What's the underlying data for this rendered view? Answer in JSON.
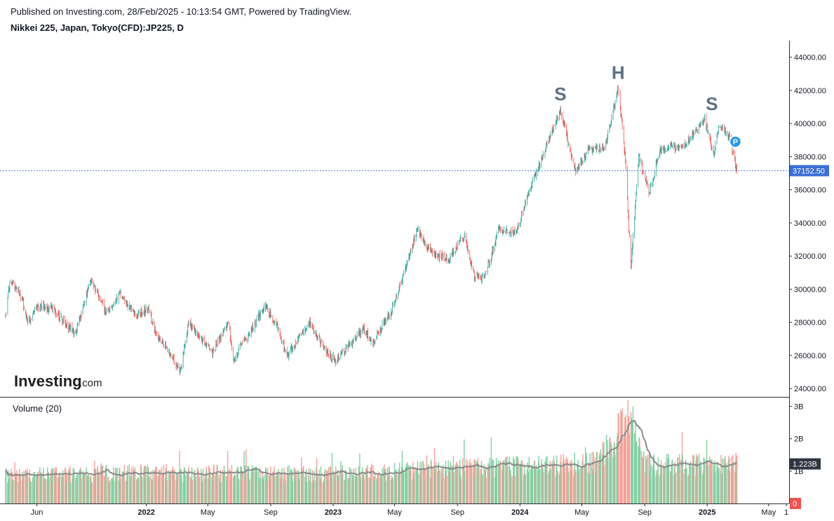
{
  "header": {
    "published": "Published on Investing.com, 28/Feb/2025 - 10:13:54 GMT, Powered by TradingView.",
    "symbol": "Nikkei 225, Japan, Tokyo(CFD):JP225, D"
  },
  "logo": {
    "main": "Investing",
    "domain": ".com"
  },
  "colors": {
    "up": "#26a69a",
    "down": "#ef5350",
    "vol_up": "#7fd1a3",
    "vol_down": "#f5a097",
    "price_badge": "#3d6fd6",
    "ma": "#8c8c8c",
    "pattern_text": "#5d7283",
    "marker": "#2196f3"
  },
  "chart_data": {
    "type": "candlestick",
    "title": "Nikkei 225, Japan, Tokyo(CFD):JP225, D",
    "x_range": [
      "2021-04-01",
      "2025-06-10"
    ],
    "y_range": [
      23500,
      45000
    ],
    "y_ticks": [
      "44000.00",
      "42000.00",
      "40000.00",
      "38000.00",
      "36000.00",
      "34000.00",
      "32000.00",
      "30000.00",
      "28000.00",
      "26000.00",
      "24000.00"
    ],
    "x_ticks": [
      "Jun",
      "2022",
      "May",
      "Sep",
      "2023",
      "May",
      "Sep",
      "2024",
      "May",
      "Sep",
      "2025",
      "May",
      "1"
    ],
    "last_price": "37152.50",
    "price_path": [
      [
        "2021-04-01",
        28400
      ],
      [
        "2021-04-10",
        30600
      ],
      [
        "2021-05-01",
        29600
      ],
      [
        "2021-05-15",
        28000
      ],
      [
        "2021-06-01",
        29000
      ],
      [
        "2021-07-01",
        28800
      ],
      [
        "2021-08-15",
        27300
      ],
      [
        "2021-09-15",
        30600
      ],
      [
        "2021-10-15",
        28500
      ],
      [
        "2021-11-10",
        29700
      ],
      [
        "2021-12-10",
        28500
      ],
      [
        "2022-01-05",
        28800
      ],
      [
        "2022-01-20",
        27400
      ],
      [
        "2022-03-08",
        25000
      ],
      [
        "2022-03-25",
        28000
      ],
      [
        "2022-05-10",
        26200
      ],
      [
        "2022-06-10",
        28000
      ],
      [
        "2022-06-20",
        25800
      ],
      [
        "2022-07-15",
        27000
      ],
      [
        "2022-08-20",
        29000
      ],
      [
        "2022-09-10",
        28000
      ],
      [
        "2022-10-03",
        26000
      ],
      [
        "2022-11-15",
        28000
      ],
      [
        "2022-12-20",
        26200
      ],
      [
        "2023-01-05",
        25700
      ],
      [
        "2023-03-01",
        27600
      ],
      [
        "2023-03-20",
        26800
      ],
      [
        "2023-04-25",
        28700
      ],
      [
        "2023-05-20",
        31000
      ],
      [
        "2023-06-15",
        33600
      ],
      [
        "2023-07-10",
        32200
      ],
      [
        "2023-08-15",
        31800
      ],
      [
        "2023-09-15",
        33300
      ],
      [
        "2023-10-04",
        30700
      ],
      [
        "2023-10-25",
        30800
      ],
      [
        "2023-11-20",
        33600
      ],
      [
        "2023-12-25",
        33400
      ],
      [
        "2024-01-20",
        36000
      ],
      [
        "2024-02-20",
        38500
      ],
      [
        "2024-03-20",
        40800
      ],
      [
        "2024-04-19",
        37000
      ],
      [
        "2024-05-15",
        38500
      ],
      [
        "2024-06-15",
        38500
      ],
      [
        "2024-07-11",
        42200
      ],
      [
        "2024-07-25",
        37800
      ],
      [
        "2024-08-05",
        31200
      ],
      [
        "2024-08-20",
        38000
      ],
      [
        "2024-09-10",
        35800
      ],
      [
        "2024-10-01",
        38500
      ],
      [
        "2024-11-15",
        38600
      ],
      [
        "2024-12-27",
        40200
      ],
      [
        "2025-01-14",
        38200
      ],
      [
        "2025-01-24",
        40000
      ],
      [
        "2025-02-14",
        39200
      ],
      [
        "2025-02-28",
        37152
      ]
    ],
    "annotations": [
      {
        "label": "S",
        "date": "2024-03-20",
        "price": 41400
      },
      {
        "label": "H",
        "date": "2024-07-11",
        "price": 42700
      },
      {
        "label": "S",
        "date": "2025-01-10",
        "price": 40800
      }
    ],
    "volume": {
      "title": "Volume (20)",
      "y_ticks": [
        "3B",
        "2B",
        "1B",
        "0"
      ],
      "y_range": [
        0,
        3.1
      ],
      "last_value": "1.223B",
      "path": [
        [
          "2021-04-01",
          0.85
        ],
        [
          "2022-01-01",
          0.95
        ],
        [
          "2023-01-01",
          0.9
        ],
        [
          "2023-05-01",
          1.0
        ],
        [
          "2024-01-01",
          1.15
        ],
        [
          "2024-06-01",
          1.25
        ],
        [
          "2024-08-05",
          2.75
        ],
        [
          "2024-09-01",
          1.2
        ],
        [
          "2025-01-01",
          1.2
        ],
        [
          "2025-02-28",
          1.223
        ]
      ]
    }
  }
}
